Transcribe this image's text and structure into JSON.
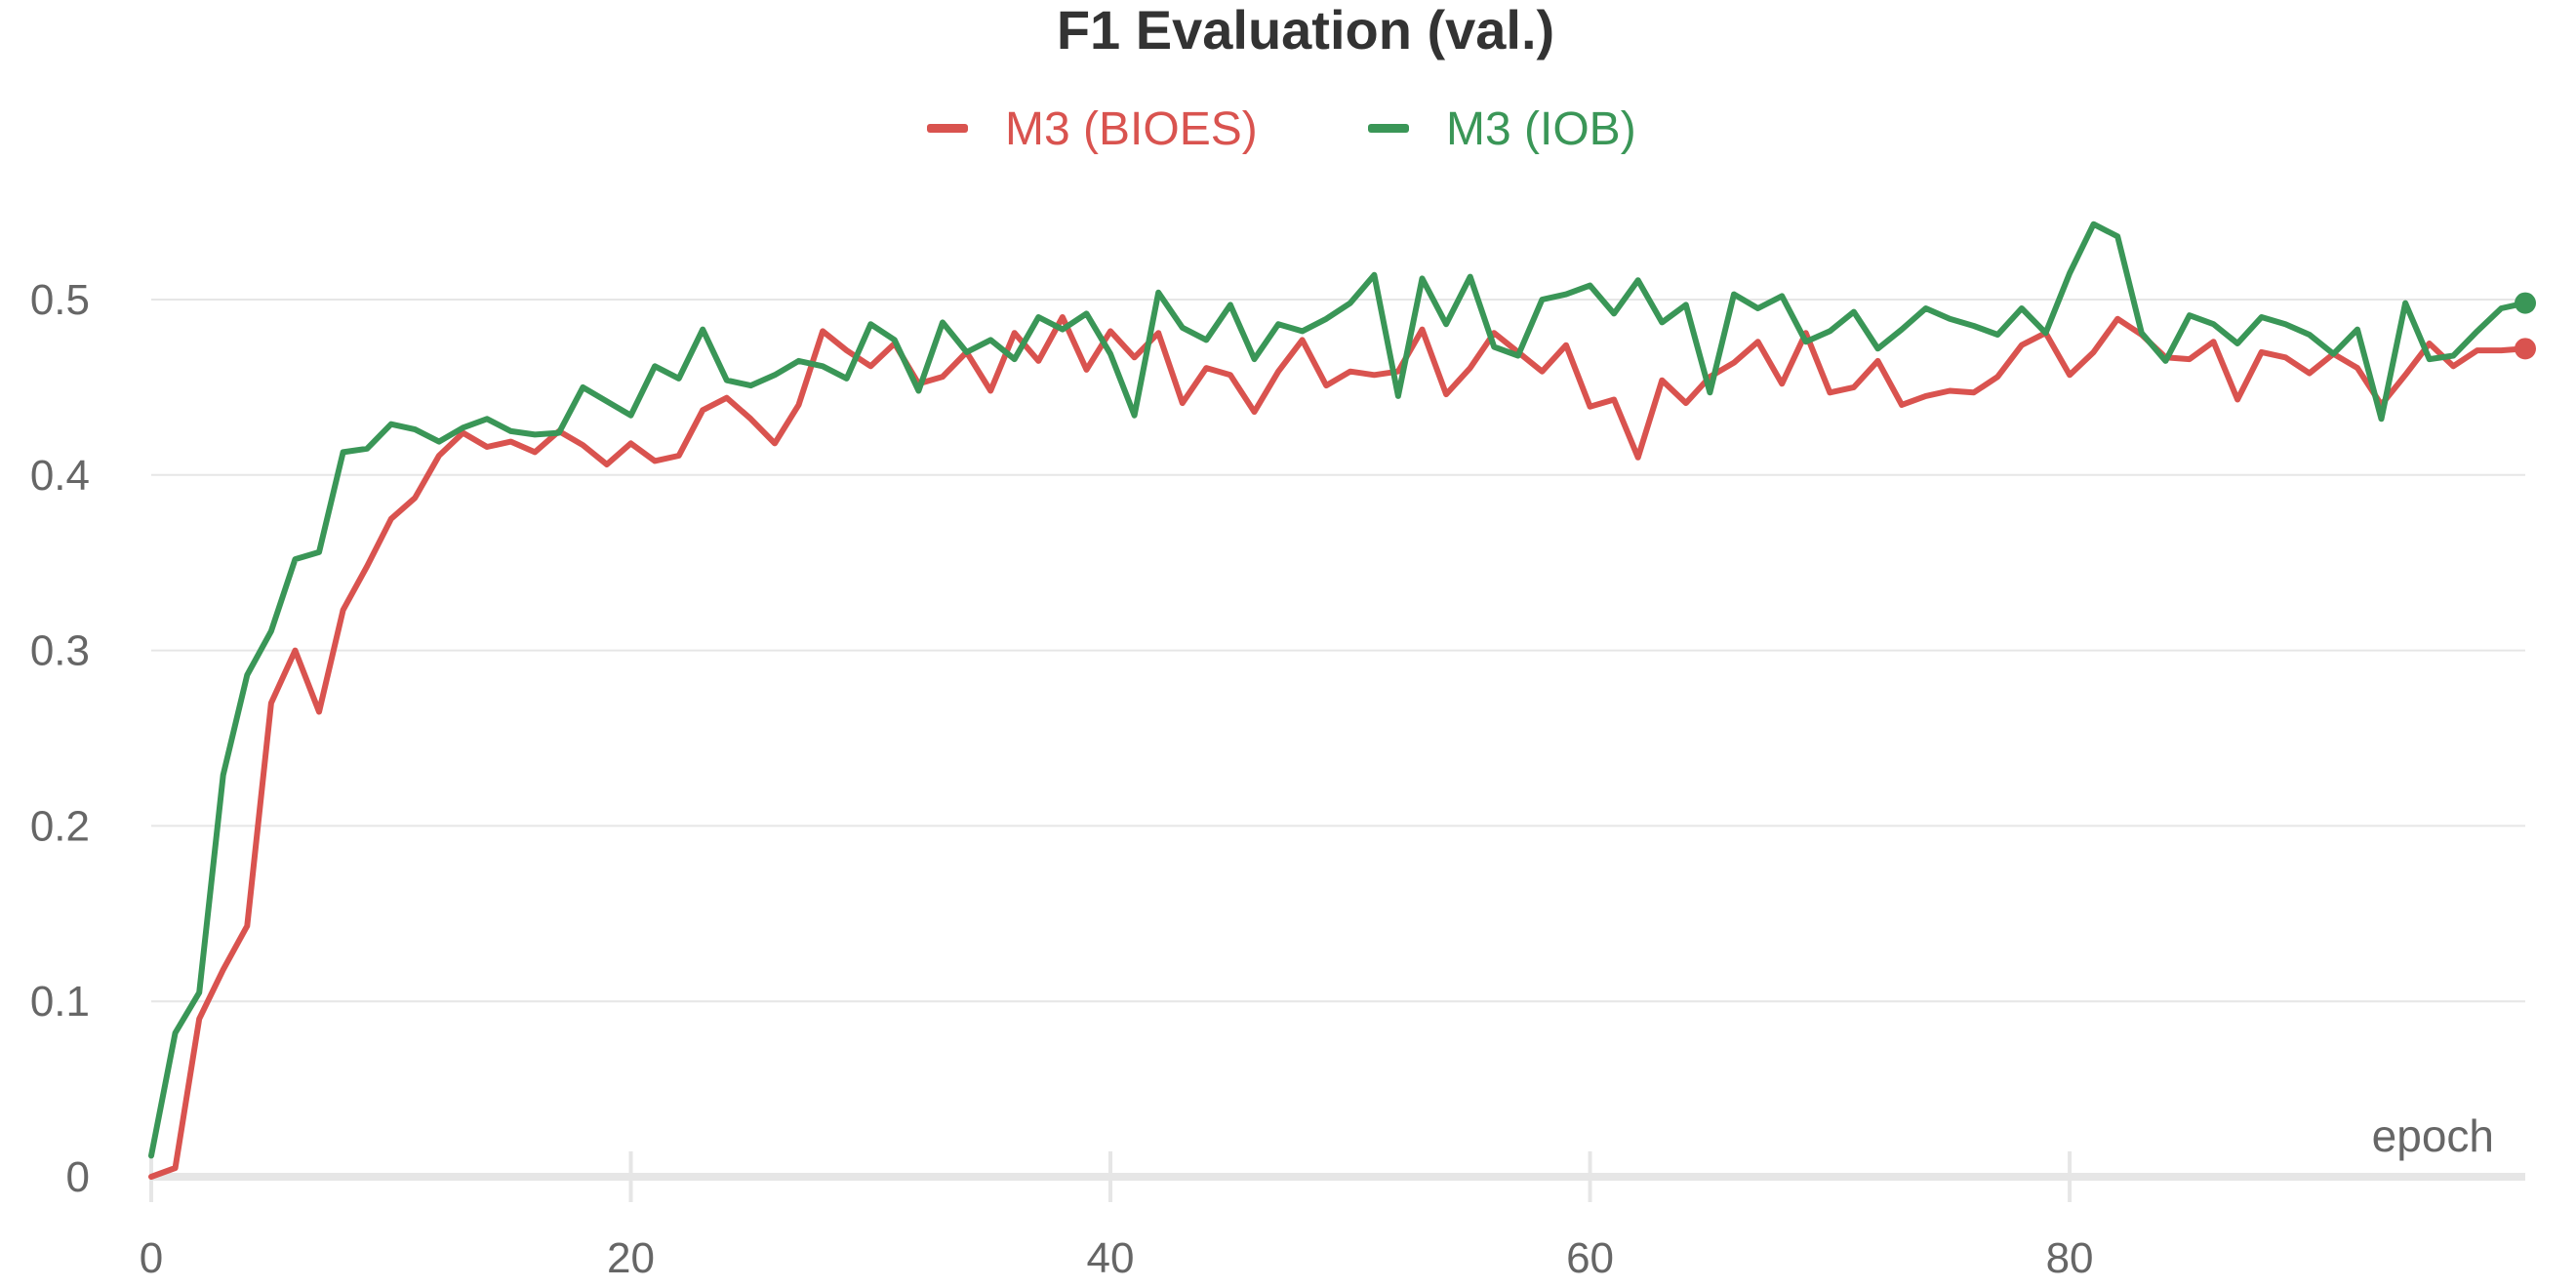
{
  "chart_data": {
    "type": "line",
    "title": "F1 Evaluation (val.)",
    "xlabel": "epoch",
    "ylabel": "",
    "xlim": [
      0,
      99
    ],
    "ylim": [
      0,
      0.55
    ],
    "x_ticks": [
      0,
      20,
      40,
      60,
      80
    ],
    "y_ticks": [
      0,
      0.1,
      0.2,
      0.3,
      0.4,
      0.5
    ],
    "x_tick_labels": [
      "0",
      "20",
      "40",
      "60",
      "80"
    ],
    "y_tick_labels": [
      "0",
      "0.1",
      "0.2",
      "0.3",
      "0.4",
      "0.5"
    ],
    "grid": true,
    "legend": "top-center",
    "series": [
      {
        "name": "M3 (BIOES)",
        "color": "#d9534f",
        "values": [
          0.0,
          0.005,
          0.09,
          0.118,
          0.143,
          0.27,
          0.3,
          0.265,
          0.323,
          0.348,
          0.375,
          0.387,
          0.411,
          0.424,
          0.416,
          0.419,
          0.413,
          0.425,
          0.417,
          0.406,
          0.418,
          0.408,
          0.411,
          0.437,
          0.444,
          0.432,
          0.418,
          0.44,
          0.482,
          0.471,
          0.462,
          0.475,
          0.452,
          0.456,
          0.47,
          0.448,
          0.481,
          0.465,
          0.49,
          0.46,
          0.482,
          0.467,
          0.481,
          0.441,
          0.461,
          0.457,
          0.436,
          0.459,
          0.477,
          0.451,
          0.459,
          0.457,
          0.459,
          0.483,
          0.446,
          0.461,
          0.481,
          0.47,
          0.459,
          0.474,
          0.439,
          0.443,
          0.41,
          0.454,
          0.441,
          0.456,
          0.464,
          0.476,
          0.452,
          0.481,
          0.447,
          0.45,
          0.465,
          0.44,
          0.445,
          0.448,
          0.447,
          0.456,
          0.474,
          0.481,
          0.457,
          0.47,
          0.489,
          0.48,
          0.467,
          0.466,
          0.476,
          0.443,
          0.47,
          0.467,
          0.458,
          0.469,
          0.461,
          0.44,
          0.457,
          0.475,
          0.462,
          0.471,
          0.471,
          0.472
        ]
      },
      {
        "name": "M3 (IOB)",
        "color": "#3a9657",
        "values": [
          0.012,
          0.082,
          0.105,
          0.229,
          0.286,
          0.311,
          0.352,
          0.356,
          0.413,
          0.415,
          0.429,
          0.426,
          0.419,
          0.427,
          0.432,
          0.425,
          0.423,
          0.424,
          0.45,
          0.442,
          0.434,
          0.462,
          0.455,
          0.483,
          0.454,
          0.451,
          0.457,
          0.465,
          0.462,
          0.455,
          0.486,
          0.477,
          0.448,
          0.487,
          0.47,
          0.477,
          0.466,
          0.49,
          0.483,
          0.492,
          0.469,
          0.434,
          0.504,
          0.484,
          0.477,
          0.497,
          0.466,
          0.486,
          0.482,
          0.489,
          0.498,
          0.514,
          0.445,
          0.512,
          0.486,
          0.513,
          0.473,
          0.468,
          0.5,
          0.503,
          0.508,
          0.492,
          0.511,
          0.487,
          0.497,
          0.447,
          0.503,
          0.495,
          0.502,
          0.476,
          0.482,
          0.493,
          0.472,
          0.483,
          0.495,
          0.489,
          0.485,
          0.48,
          0.495,
          0.481,
          0.515,
          0.543,
          0.536,
          0.481,
          0.465,
          0.491,
          0.486,
          0.475,
          0.49,
          0.486,
          0.48,
          0.469,
          0.483,
          0.432,
          0.498,
          0.466,
          0.468,
          0.482,
          0.495,
          0.498
        ]
      }
    ]
  }
}
